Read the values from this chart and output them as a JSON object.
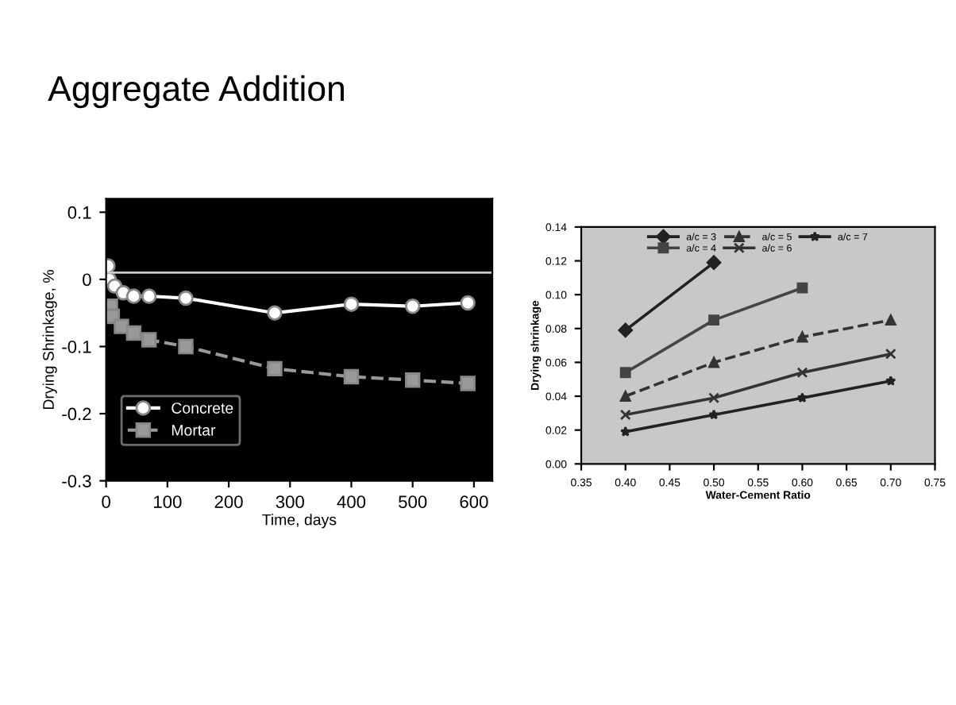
{
  "chart_data": [
    {
      "type": "line",
      "title": "Aggregate Addition",
      "xlabel": "Time, days",
      "ylabel": "Drying Shrinkage, %",
      "xlim": [
        0,
        630
      ],
      "ylim": [
        -0.3,
        0.12
      ],
      "xticks": [
        0,
        100,
        200,
        300,
        400,
        500,
        600
      ],
      "yticks": [
        -0.3,
        -0.2,
        -0.1,
        0,
        0.1
      ],
      "legend": "bottom left",
      "grid": false,
      "ref_lines": [
        {
          "axis": "y",
          "value": 0.01,
          "color": "#cccccc"
        }
      ],
      "series": [
        {
          "name": "Concrete",
          "color": "#ffffff",
          "marker": "circle",
          "line_style": "solid",
          "x": [
            3,
            5,
            14,
            28,
            45,
            70,
            130,
            275,
            400,
            500,
            590
          ],
          "values": [
            0.02,
            0,
            -0.01,
            -0.02,
            -0.025,
            -0.025,
            -0.028,
            -0.05,
            -0.037,
            -0.04,
            -0.035
          ]
        },
        {
          "name": "Mortar",
          "color": "#999999",
          "marker": "square",
          "line_style": "dashed",
          "x": [
            7,
            10,
            25,
            45,
            70,
            130,
            275,
            400,
            500,
            590
          ],
          "values": [
            -0.04,
            -0.055,
            -0.07,
            -0.08,
            -0.09,
            -0.1,
            -0.133,
            -0.145,
            -0.15,
            -0.155
          ]
        }
      ]
    },
    {
      "type": "line",
      "xlabel": "Water-Cement Ratio",
      "ylabel": "Drying shrinkage",
      "xlim": [
        0.35,
        0.75
      ],
      "ylim": [
        0,
        0.14
      ],
      "xticks": [
        {
          "value": 0.35,
          "label": "0.35"
        },
        {
          "value": 0.4,
          "label": "0.40"
        },
        {
          "value": 0.45,
          "label": "0.45"
        },
        {
          "value": 0.5,
          "label": "0.50"
        },
        {
          "value": 0.55,
          "label": "0.55"
        },
        {
          "value": 0.6,
          "label": "0.60"
        },
        {
          "value": 0.65,
          "label": "0.65"
        },
        {
          "value": 0.7,
          "label": "0.70"
        },
        {
          "value": 0.75,
          "label": "0.75"
        }
      ],
      "yticks": [
        {
          "value": 0,
          "label": "0.00"
        },
        {
          "value": 0.02,
          "label": "0.02"
        },
        {
          "value": 0.04,
          "label": "0.04"
        },
        {
          "value": 0.06,
          "label": "0.06"
        },
        {
          "value": 0.08,
          "label": "0.08"
        },
        {
          "value": 0.1,
          "label": "0.10"
        },
        {
          "value": 0.12,
          "label": "0.12"
        },
        {
          "value": 0.14,
          "label": "0.14"
        }
      ],
      "legend": "top",
      "grid": false,
      "series": [
        {
          "name": "a/c = 3",
          "color": "#222222",
          "marker": "diamond",
          "line_style": "solid",
          "x": [
            0.4,
            0.5
          ],
          "values": [
            0.079,
            0.119
          ]
        },
        {
          "name": "a/c = 4",
          "color": "#444444",
          "marker": "square",
          "line_style": "solid",
          "x": [
            0.4,
            0.5,
            0.6
          ],
          "values": [
            0.054,
            0.085,
            0.104
          ]
        },
        {
          "name": "a/c = 5",
          "color": "#333333",
          "marker": "triangle",
          "line_style": "dashed",
          "x": [
            0.4,
            0.5,
            0.6,
            0.7
          ],
          "values": [
            0.04,
            0.06,
            0.075,
            0.085
          ]
        },
        {
          "name": "a/c = 6",
          "color": "#333333",
          "marker": "cross",
          "line_style": "solid",
          "x": [
            0.4,
            0.5,
            0.6,
            0.7
          ],
          "values": [
            0.029,
            0.039,
            0.054,
            0.065
          ]
        },
        {
          "name": "a/c = 7",
          "color": "#222222",
          "marker": "star",
          "line_style": "solid",
          "x": [
            0.4,
            0.5,
            0.6,
            0.7
          ],
          "values": [
            0.019,
            0.029,
            0.039,
            0.049
          ]
        }
      ]
    }
  ]
}
